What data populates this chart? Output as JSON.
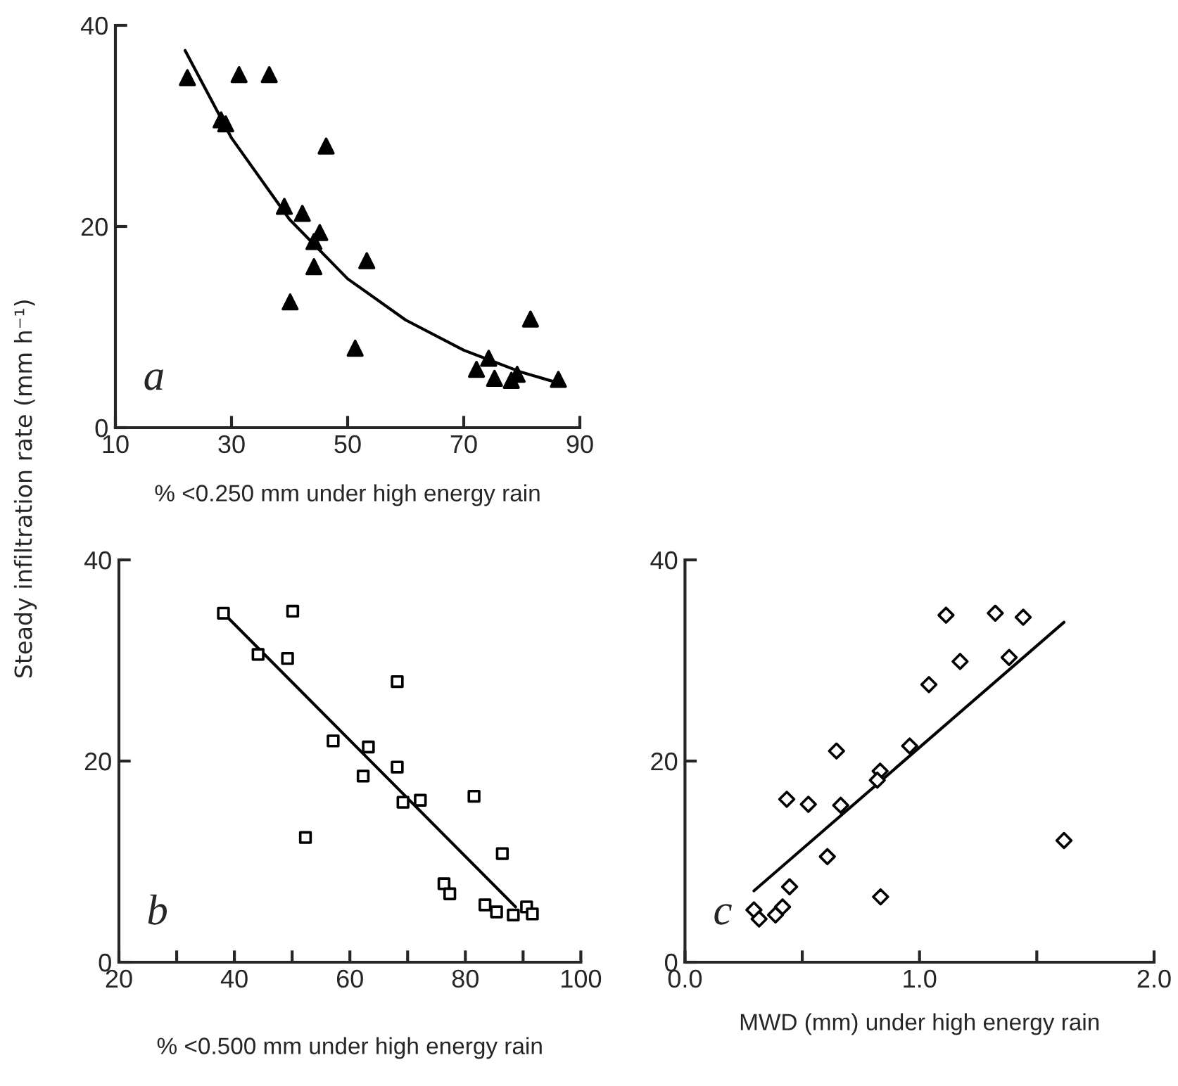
{
  "chart_data": [
    {
      "type": "scatter",
      "xlabel": "% <0.250 mm under high energy rain",
      "ylabel": "Steady infiltration rate (mm h⁻¹)",
      "annotations": [
        "a"
      ],
      "xlim": [
        10,
        90
      ],
      "xticks": [
        10,
        30,
        50,
        70,
        90
      ],
      "ylim": [
        0,
        40
      ],
      "yticks": [
        0,
        20,
        40
      ],
      "grid": false,
      "legend": false,
      "series": [
        {
          "marker": "triangle",
          "color": "#000000",
          "x": [
            22.4,
            31.3,
            36.5,
            28.2,
            29.0,
            46.3,
            39.1,
            42.2,
            45.2,
            44.2,
            44.2,
            53.3,
            40.1,
            51.3,
            81.5,
            74.3,
            72.2,
            75.3,
            78.2,
            79.2,
            86.3
          ],
          "values": [
            34.8,
            35.1,
            35.1,
            30.6,
            30.2,
            28.0,
            22.0,
            21.3,
            19.4,
            18.5,
            16.0,
            16.6,
            12.5,
            7.9,
            10.8,
            6.9,
            5.8,
            4.9,
            4.7,
            5.3,
            4.8
          ]
        },
        {
          "type": "line",
          "marker": "none",
          "line_style": "solid",
          "color": "#000000",
          "x": [
            22,
            30,
            40,
            50,
            60,
            70,
            80,
            86
          ],
          "values": [
            37.5,
            28.8,
            20.7,
            14.8,
            10.7,
            7.7,
            5.5,
            4.5
          ]
        }
      ]
    },
    {
      "type": "scatter",
      "xlabel": "% <0.500 mm under high energy rain",
      "annotations": [
        "b"
      ],
      "xlim": [
        20,
        100
      ],
      "xticks": [
        20,
        {
          "value": 30,
          "label": null
        },
        40,
        {
          "value": 50,
          "label": null
        },
        60,
        {
          "value": 70,
          "label": null
        },
        80,
        {
          "value": 90,
          "label": null
        },
        100
      ],
      "ylim": [
        0,
        40
      ],
      "yticks": [
        0,
        20,
        40
      ],
      "grid": false,
      "legend": false,
      "series": [
        {
          "marker": "square",
          "color": "#000000",
          "x": [
            38.1,
            50.1,
            44.1,
            49.2,
            68.2,
            57.1,
            63.2,
            68.2,
            62.3,
            69.2,
            72.2,
            81.5,
            52.3,
            86.4,
            76.3,
            77.3,
            83.4,
            85.4,
            88.3,
            90.6,
            91.6
          ],
          "values": [
            34.7,
            34.9,
            30.6,
            30.2,
            27.9,
            22.0,
            21.4,
            19.4,
            18.5,
            15.9,
            16.1,
            16.5,
            12.4,
            10.8,
            7.8,
            6.8,
            5.7,
            5.0,
            4.7,
            5.5,
            4.8
          ]
        },
        {
          "type": "line",
          "marker": "none",
          "line_style": "solid",
          "color": "#000000",
          "x": [
            38.1,
            88.7
          ],
          "values": [
            34.7,
            5.5
          ]
        }
      ]
    },
    {
      "type": "scatter",
      "xlabel": "MWD (mm) under high energy rain",
      "annotations": [
        "c"
      ],
      "xlim": [
        0,
        2
      ],
      "xticks": [
        {
          "value": 0,
          "label": "0.0"
        },
        {
          "value": 0.5,
          "label": null
        },
        {
          "value": 1,
          "label": "1.0"
        },
        {
          "value": 1.5,
          "label": null
        },
        {
          "value": 2,
          "label": "2.0"
        }
      ],
      "ylim": [
        0,
        40
      ],
      "yticks": [
        0,
        20,
        40
      ],
      "grid": false,
      "legend": false,
      "series": [
        {
          "marker": "diamond",
          "color": "#000000",
          "x": [
            1.113,
            1.323,
            1.442,
            1.173,
            1.382,
            1.04,
            0.646,
            0.958,
            0.832,
            0.82,
            0.434,
            0.526,
            0.664,
            1.616,
            0.607,
            0.446,
            0.834,
            0.294,
            0.316,
            0.386,
            0.416
          ],
          "values": [
            34.5,
            34.7,
            34.3,
            29.9,
            30.3,
            27.6,
            21.0,
            21.5,
            19.0,
            18.1,
            16.2,
            15.7,
            15.6,
            12.1,
            10.5,
            7.5,
            6.5,
            5.2,
            4.3,
            4.7,
            5.5
          ]
        },
        {
          "type": "line",
          "marker": "none",
          "line_style": "solid",
          "color": "#000000",
          "x": [
            0.294,
            1.616
          ],
          "values": [
            7.1,
            33.8
          ]
        }
      ]
    }
  ]
}
